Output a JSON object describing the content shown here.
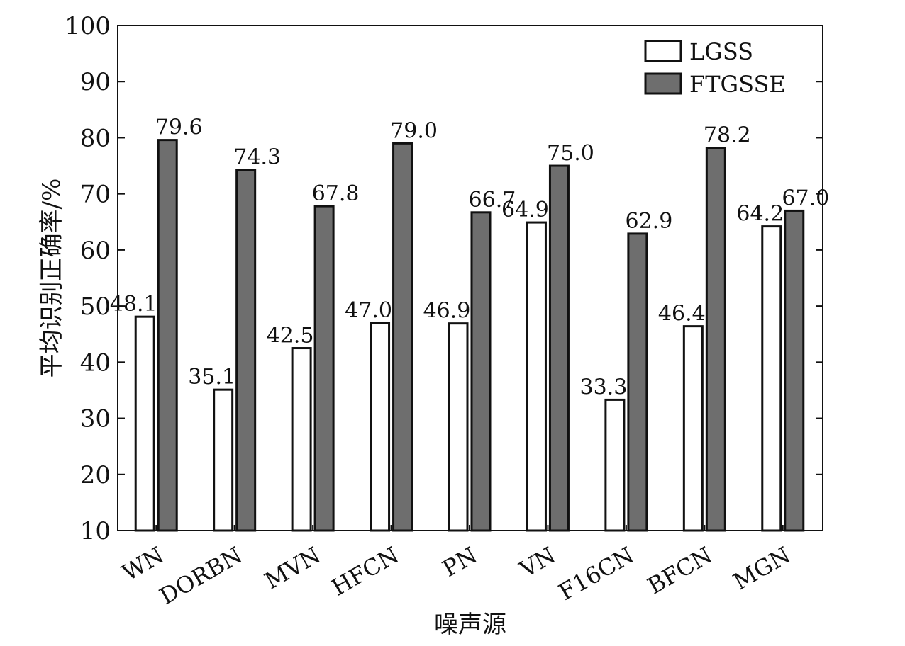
{
  "chart_data": {
    "type": "bar",
    "title": "",
    "xlabel": "噪声源",
    "ylabel": "平均识别正确率/%",
    "ylim": [
      10,
      100
    ],
    "yticks": [
      10,
      20,
      30,
      40,
      50,
      60,
      70,
      80,
      90,
      100
    ],
    "categories": [
      "WN",
      "DORBN",
      "MVN",
      "HFCN",
      "PN",
      "VN",
      "F16CN",
      "BFCN",
      "MGN"
    ],
    "series": [
      {
        "name": "LGSS",
        "color": "#ffffff",
        "values": [
          48.1,
          35.1,
          42.5,
          47.0,
          46.9,
          64.9,
          33.3,
          46.4,
          64.2
        ]
      },
      {
        "name": "FTGSSE",
        "color": "#6e6e6e",
        "values": [
          79.6,
          74.3,
          67.8,
          79.0,
          66.7,
          75.0,
          62.9,
          78.2,
          67.0
        ]
      }
    ],
    "value_labels": [
      [
        "48.1",
        "35.1",
        "42.5",
        "47.0",
        "46.9",
        "64.9",
        "33.3",
        "46.4",
        "64.2"
      ],
      [
        "79.6",
        "74.3",
        "67.8",
        "79.0",
        "66.7",
        "75.0",
        "62.9",
        "78.2",
        "67.0"
      ]
    ],
    "grid": false,
    "legend_position": "top-right"
  }
}
